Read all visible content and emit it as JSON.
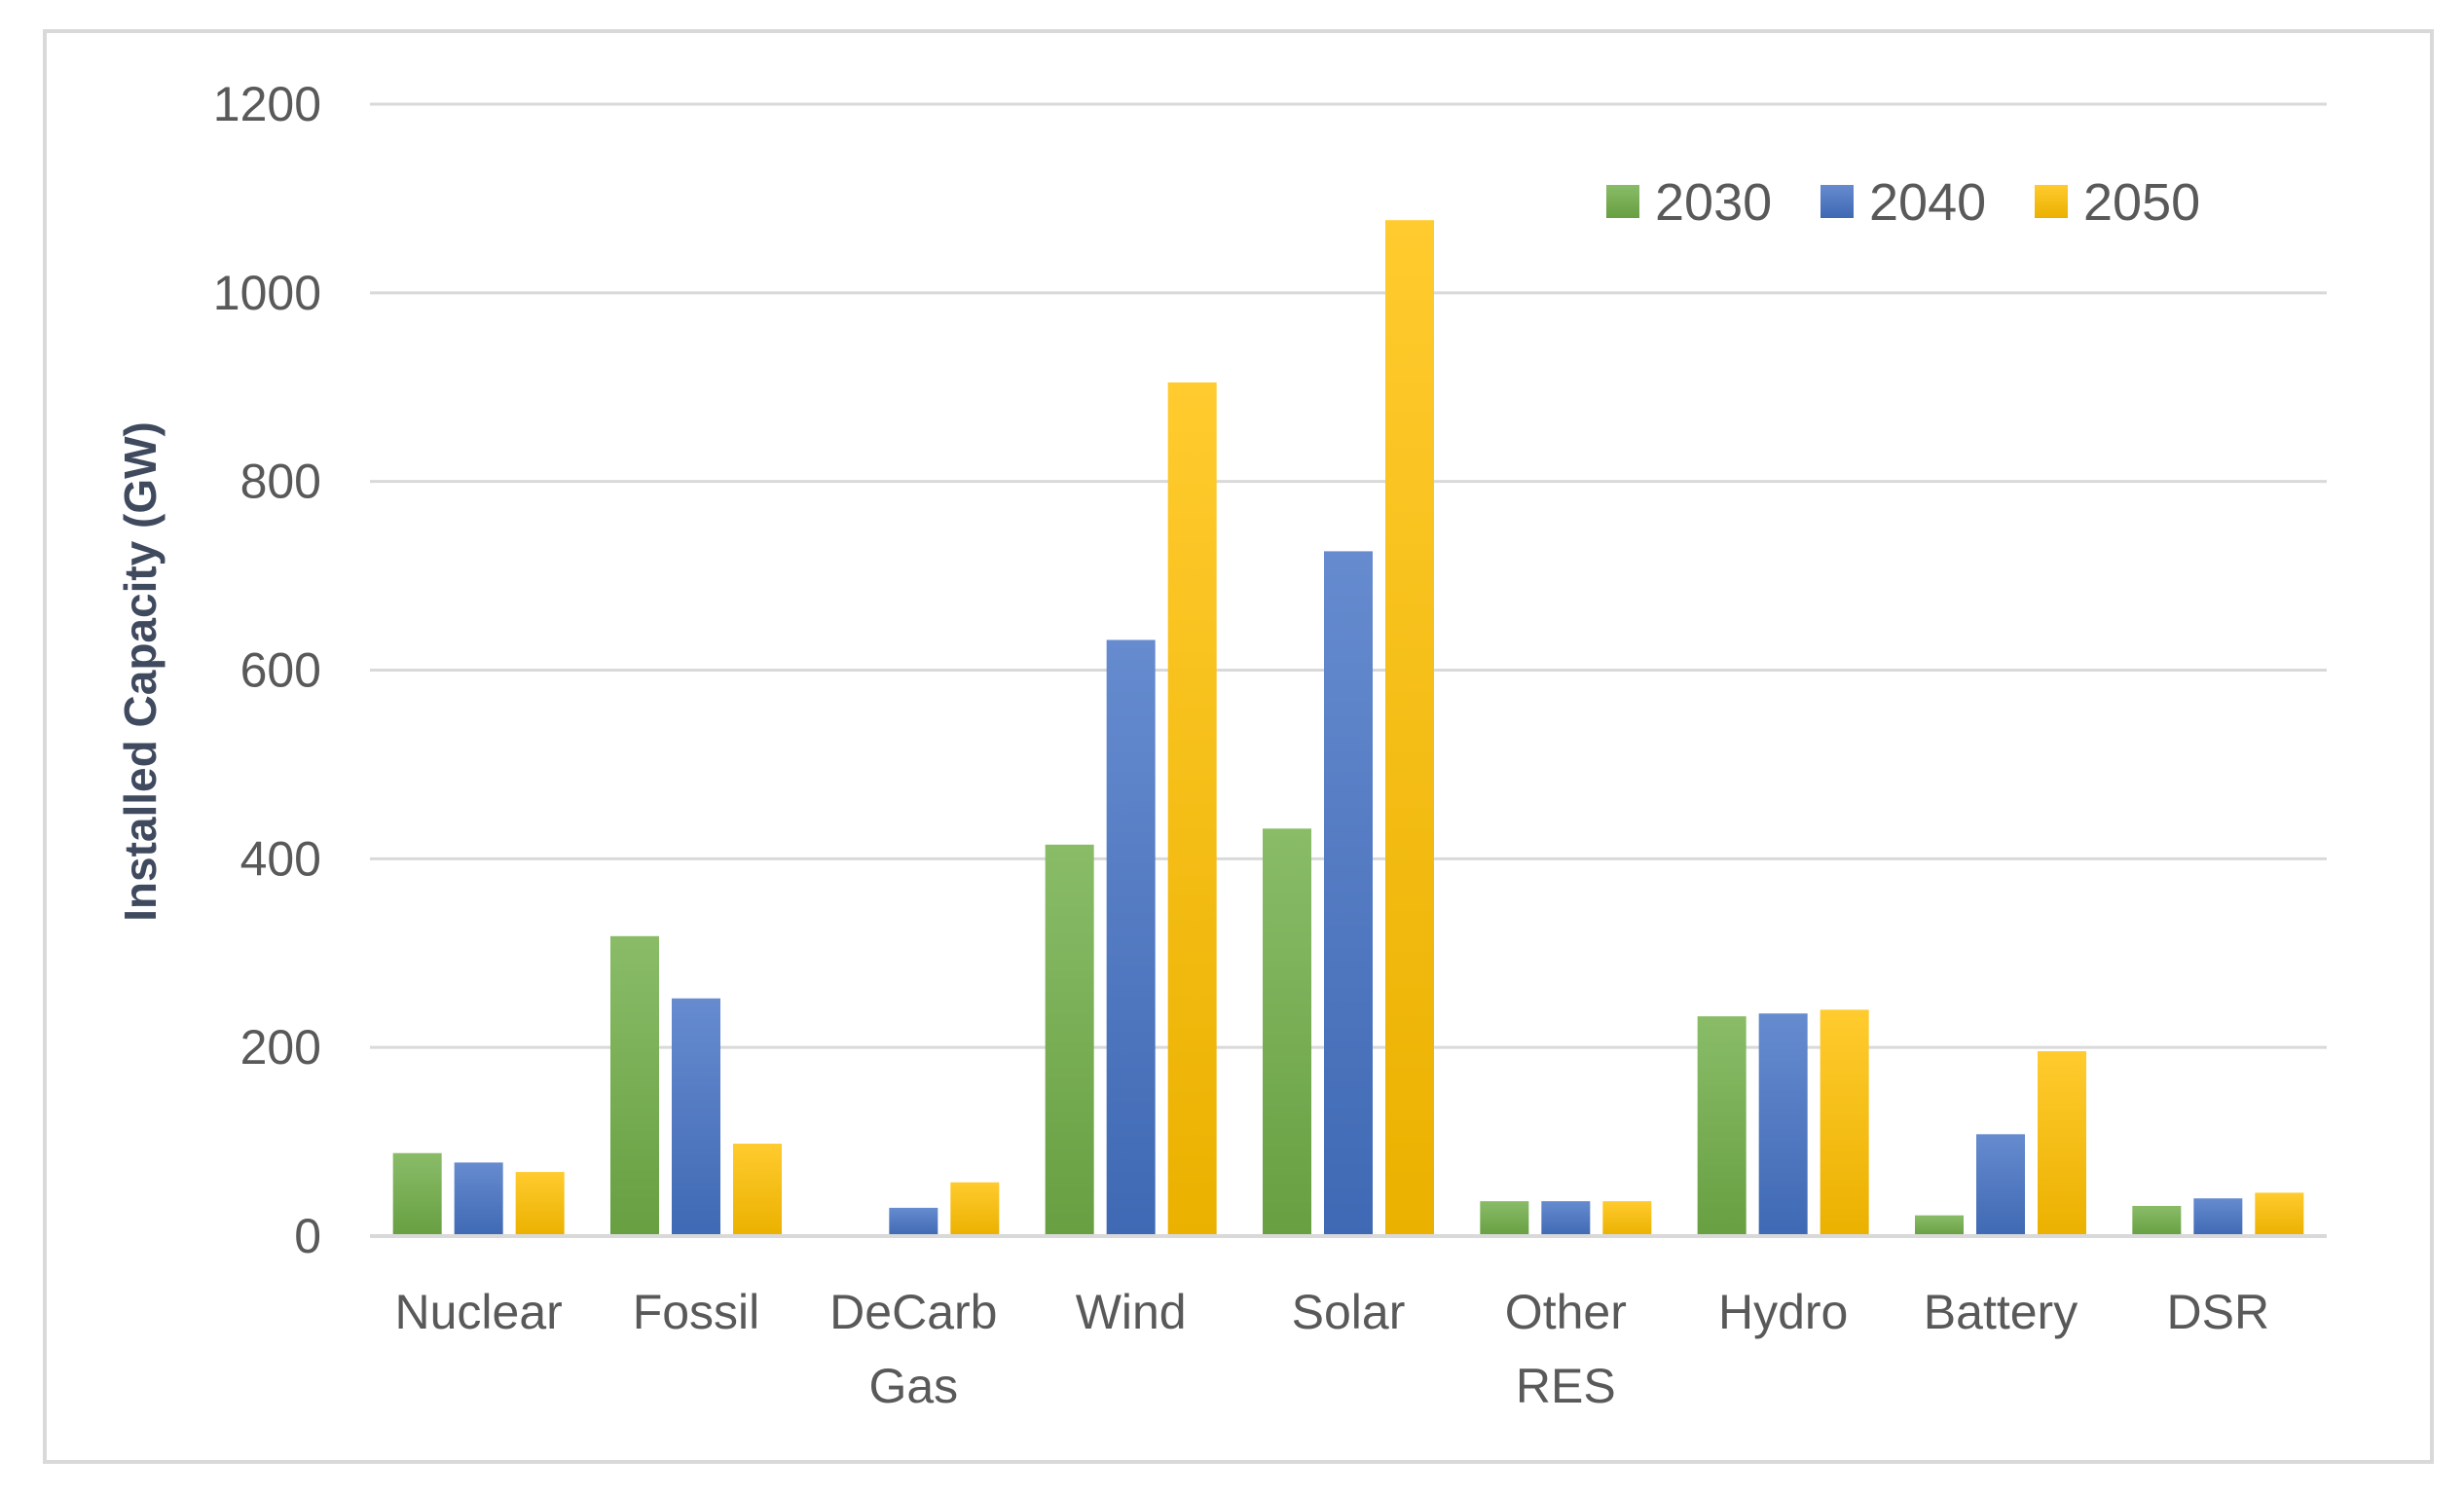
{
  "chart_data": {
    "type": "bar",
    "title": "",
    "xlabel": "",
    "ylabel": "Installed Capacity (GW)",
    "ylim": [
      0,
      1200
    ],
    "yticks": [
      0,
      200,
      400,
      600,
      800,
      1000,
      1200
    ],
    "grid": true,
    "legend_position": "top-right",
    "categories": [
      [
        "Nuclear"
      ],
      [
        "Fossil"
      ],
      [
        "DeCarb",
        "Gas"
      ],
      [
        "Wind"
      ],
      [
        "Solar"
      ],
      [
        "Other",
        "RES"
      ],
      [
        "Hydro"
      ],
      [
        "Battery"
      ],
      [
        "DSR"
      ]
    ],
    "series": [
      {
        "name": "2030",
        "color": "#70ad47",
        "values": [
          88,
          318,
          0,
          415,
          432,
          37,
          233,
          22,
          32
        ]
      },
      {
        "name": "2040",
        "color": "#4472c4",
        "values": [
          78,
          252,
          30,
          632,
          726,
          37,
          236,
          108,
          40
        ]
      },
      {
        "name": "2050",
        "color": "#ffc000",
        "values": [
          68,
          98,
          57,
          905,
          1077,
          37,
          240,
          196,
          46
        ]
      }
    ]
  }
}
